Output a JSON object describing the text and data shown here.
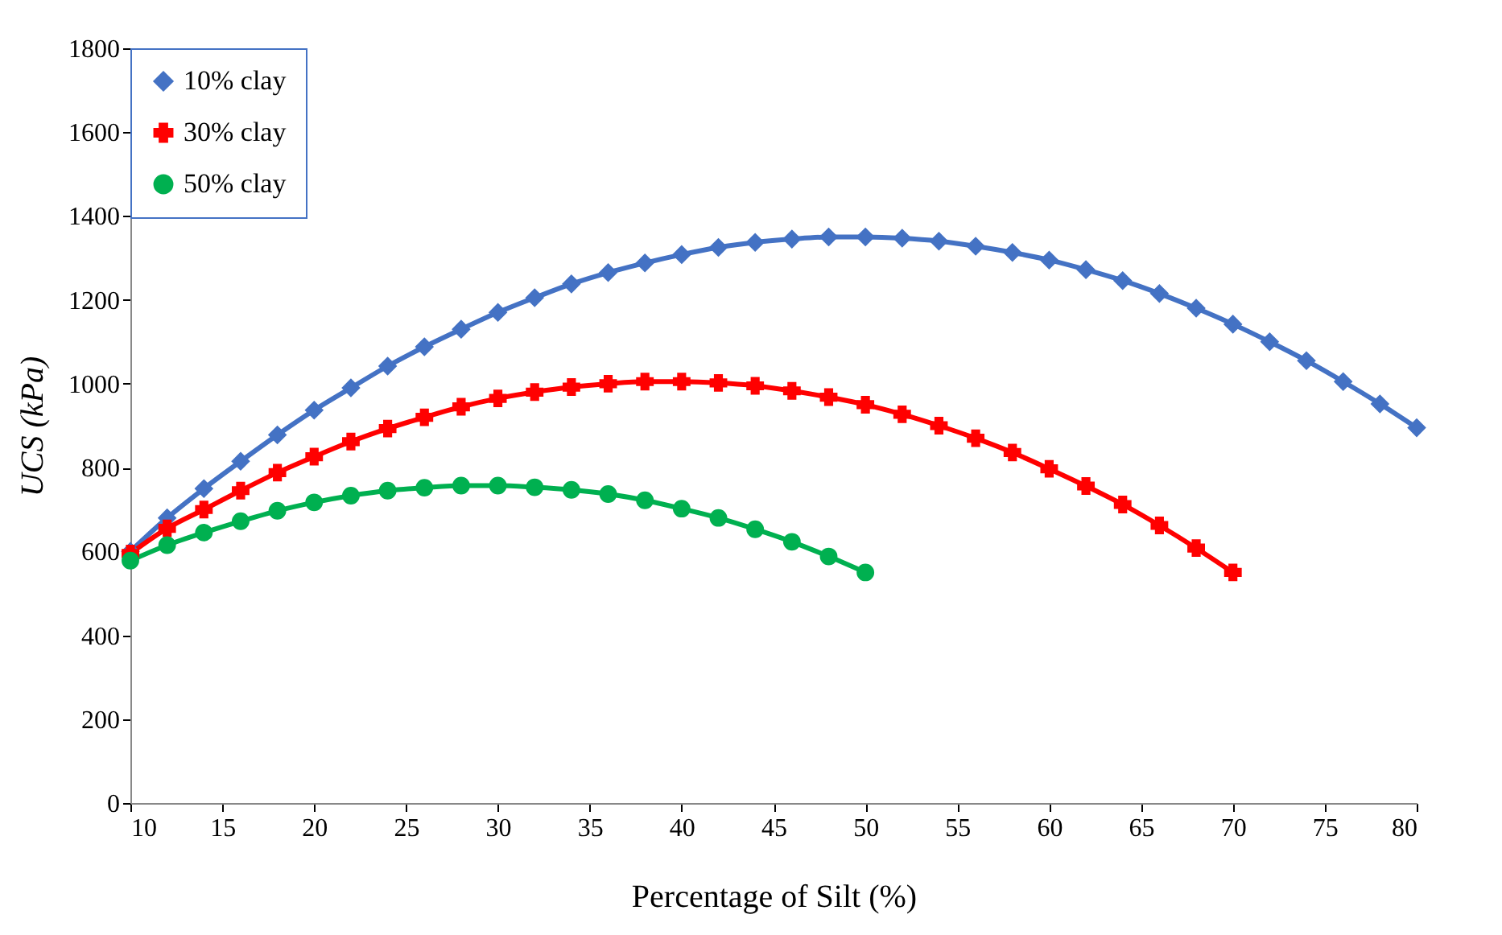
{
  "chart_data": {
    "type": "line",
    "xlabel": "Percentage of Silt (%)",
    "ylabel": "UCS (kPa)",
    "xlim": [
      10,
      80
    ],
    "xticks": [
      10,
      15,
      20,
      25,
      30,
      35,
      40,
      45,
      50,
      55,
      60,
      65,
      70,
      75,
      80
    ],
    "ylim": [
      0,
      1800
    ],
    "yticks": [
      0,
      200,
      400,
      600,
      800,
      1000,
      1200,
      1400,
      1600,
      1800
    ],
    "grid": false,
    "legend": "top left",
    "line_style": "solid",
    "series": [
      {
        "name": "10% clay",
        "color": "#4472c4",
        "marker": "diamond",
        "x": [
          10,
          12,
          14,
          16,
          18,
          20,
          22,
          24,
          26,
          28,
          30,
          32,
          34,
          36,
          38,
          40,
          42,
          44,
          46,
          48,
          50,
          52,
          54,
          56,
          58,
          60,
          62,
          64,
          66,
          68,
          70,
          72,
          74,
          76,
          78,
          80
        ],
        "values": [
          600,
          680,
          750,
          815,
          878,
          937,
          990,
          1042,
          1088,
          1130,
          1170,
          1205,
          1238,
          1265,
          1288,
          1308,
          1325,
          1337,
          1345,
          1350,
          1350,
          1347,
          1340,
          1328,
          1313,
          1295,
          1272,
          1246,
          1215,
          1180,
          1142,
          1100,
          1055,
          1005,
          952,
          895
        ]
      },
      {
        "name": "30% clay",
        "color": "#ff0000",
        "marker": "cross",
        "x": [
          10,
          12,
          14,
          16,
          18,
          20,
          22,
          24,
          26,
          28,
          30,
          32,
          34,
          36,
          38,
          40,
          42,
          44,
          46,
          48,
          50,
          52,
          54,
          56,
          58,
          60,
          62,
          64,
          66,
          68,
          70
        ],
        "values": [
          595,
          655,
          700,
          745,
          788,
          826,
          862,
          893,
          920,
          945,
          965,
          980,
          992,
          1000,
          1005,
          1005,
          1002,
          995,
          983,
          968,
          950,
          927,
          900,
          870,
          836,
          797,
          756,
          712,
          662,
          608,
          550
        ]
      },
      {
        "name": "50% clay",
        "color": "#00b050",
        "marker": "circle",
        "x": [
          10,
          12,
          14,
          16,
          18,
          20,
          22,
          24,
          26,
          28,
          30,
          32,
          34,
          36,
          38,
          40,
          42,
          44,
          46,
          48,
          50
        ],
        "values": [
          578,
          615,
          645,
          672,
          697,
          717,
          733,
          745,
          752,
          757,
          757,
          753,
          747,
          737,
          722,
          702,
          680,
          653,
          623,
          588,
          550
        ]
      }
    ]
  }
}
